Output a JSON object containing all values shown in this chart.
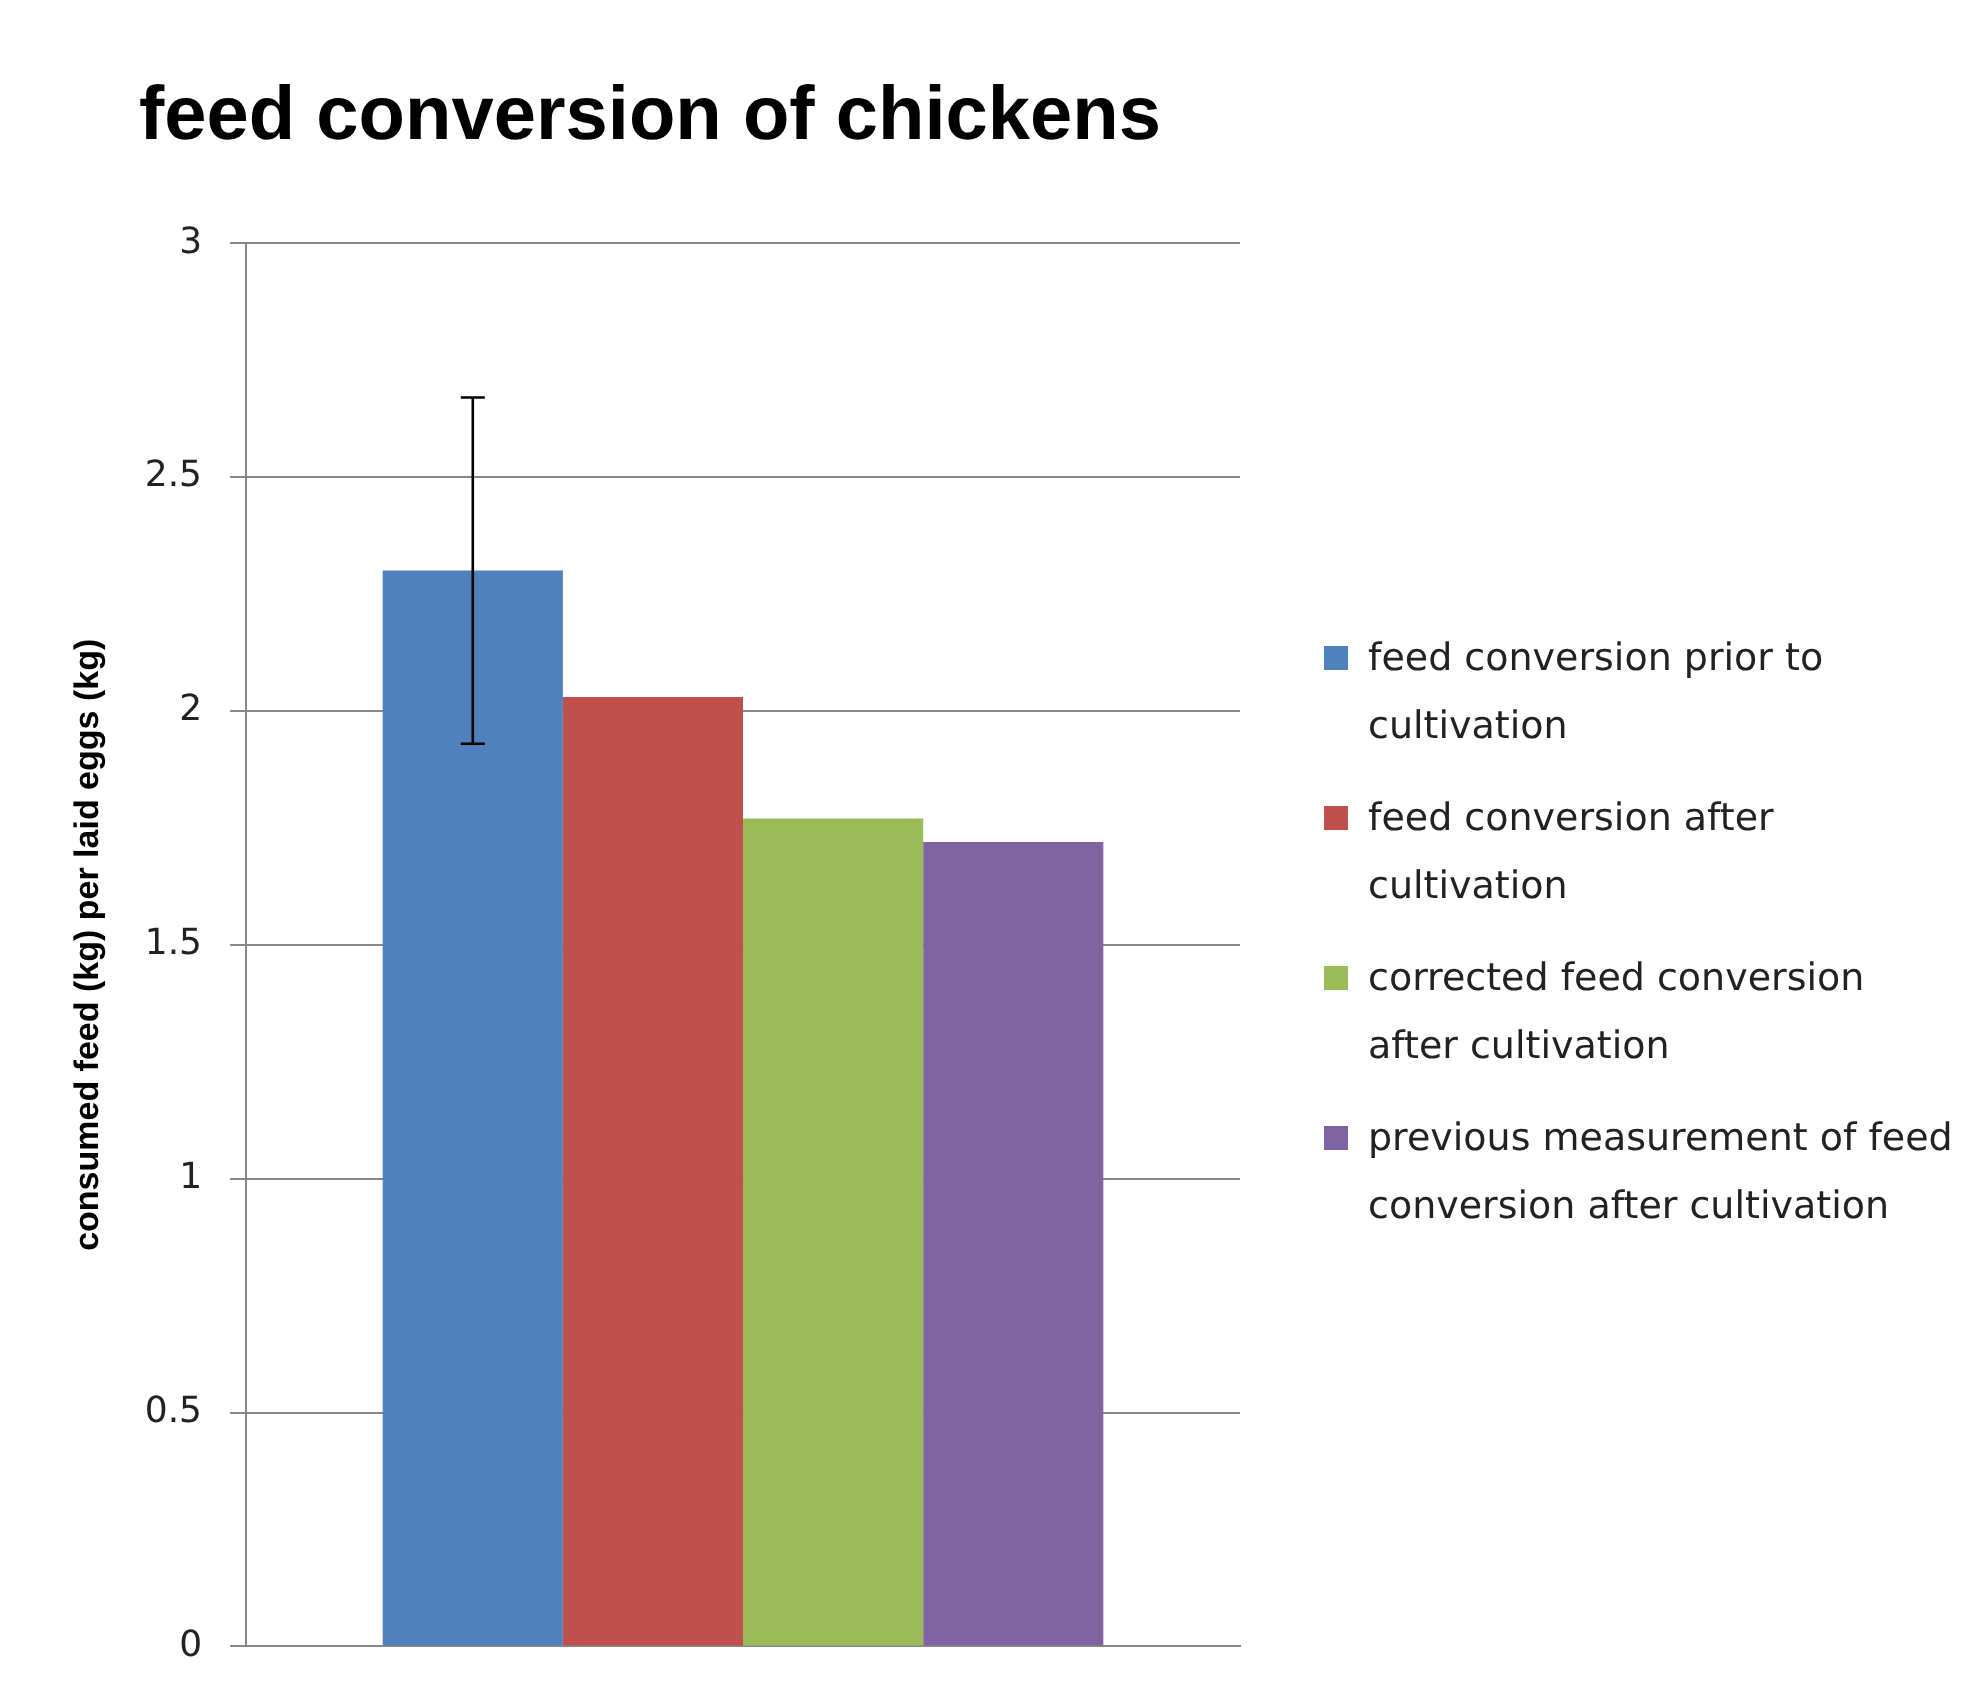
{
  "chart_data": {
    "type": "bar",
    "title": "feed conversion of chickens",
    "ylabel": "consumed feed (kg) per laid eggs (kg)",
    "categories": [
      null
    ],
    "series": [
      {
        "name": "feed conversion prior to cultivation",
        "color": "#4f81bd",
        "values": [
          2.3
        ],
        "errors": [
          0.37
        ]
      },
      {
        "name": "feed conversion after cultivation",
        "color": "#c0504d",
        "values": [
          2.03
        ]
      },
      {
        "name": "corrected feed conversion after cultivation",
        "color": "#9bbb59",
        "values": [
          1.77
        ]
      },
      {
        "name": "previous measurement of feed conversion after cultivation",
        "color": "#8064a2",
        "values": [
          1.72
        ]
      }
    ],
    "ylim": [
      0,
      3
    ],
    "yticks": [
      0,
      0.5,
      1,
      1.5,
      2,
      2.5,
      3
    ],
    "grid": "y",
    "legend": "right"
  }
}
